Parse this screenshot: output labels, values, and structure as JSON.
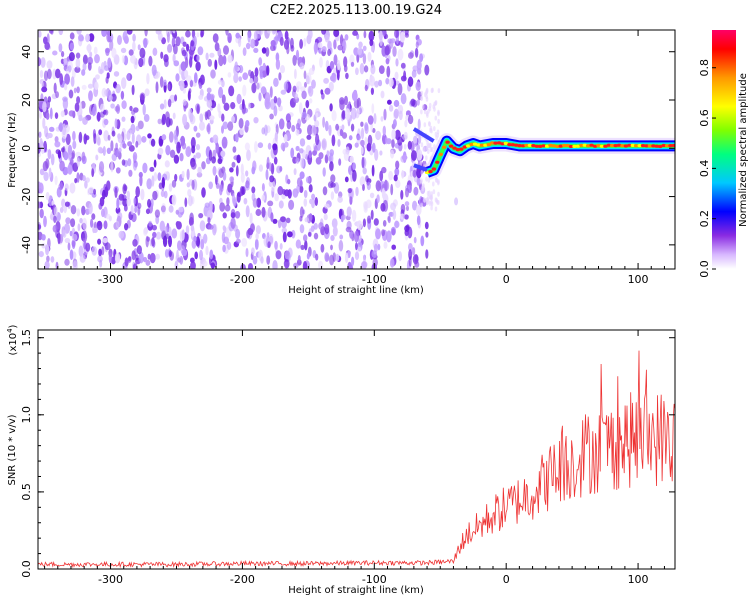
{
  "title": "C2E2.2025.113.00.19.G24",
  "chart_data": [
    {
      "type": "heatmap",
      "xlabel": "Height of straight line (km)",
      "ylabel": "Frequency (Hz)",
      "xlim": [
        -355,
        128
      ],
      "ylim": [
        -50,
        49
      ],
      "xticks": [
        -300,
        -200,
        -100,
        0,
        100
      ],
      "yticks": [
        -40,
        -20,
        0,
        20,
        40
      ],
      "colorbar": {
        "label": "Normalized spectral amplitude",
        "range": [
          0,
          0.95
        ],
        "ticks": [
          0.0,
          0.2,
          0.4,
          0.6,
          0.8
        ],
        "colors": [
          "#ffffff",
          "#e6ccff",
          "#8a2be2",
          "#0000ff",
          "#00ffff",
          "#00ff00",
          "#ffff00",
          "#ff8000",
          "#ff0000",
          "#ff0080"
        ]
      },
      "noise_region": {
        "x": [
          -355,
          -60
        ],
        "y": [
          -50,
          49
        ],
        "amplitude": [
          0.0,
          0.15
        ]
      },
      "signal_track": {
        "x": [
          -60,
          -55,
          -50,
          -45,
          -40,
          -35,
          -30,
          -25,
          -20,
          -10,
          0,
          10,
          30,
          50,
          70,
          90,
          110,
          128
        ],
        "y": [
          -10,
          -9,
          -3,
          3,
          0,
          -1,
          1,
          2,
          1,
          2,
          2,
          1,
          1,
          1,
          1,
          1,
          1,
          1
        ],
        "peak_amplitude": 0.9
      }
    },
    {
      "type": "line",
      "xlabel": "Height of straight line (km)",
      "ylabel": "SNR (10 * v/v)",
      "y_multiplier": "(x10",
      "y_multiplier_exp": "4",
      "y_multiplier_close": ")",
      "xlim": [
        -355,
        128
      ],
      "ylim": [
        0,
        1.55
      ],
      "xticks": [
        -300,
        -200,
        -100,
        0,
        100
      ],
      "yticks": [
        "0.0",
        "0.5",
        "1.0",
        "1.5"
      ],
      "series": [
        {
          "color": "#ee3333",
          "x": [
            -355,
            -300,
            -250,
            -200,
            -150,
            -100,
            -60,
            -40,
            -35,
            -30,
            -25,
            -20,
            -10,
            0,
            20,
            40,
            60,
            80,
            100,
            120,
            128
          ],
          "y": [
            0.03,
            0.03,
            0.03,
            0.035,
            0.035,
            0.04,
            0.04,
            0.05,
            0.15,
            0.22,
            0.25,
            0.28,
            0.35,
            0.4,
            0.5,
            0.65,
            0.75,
            0.8,
            0.85,
            0.85,
            0.82
          ]
        }
      ]
    }
  ]
}
